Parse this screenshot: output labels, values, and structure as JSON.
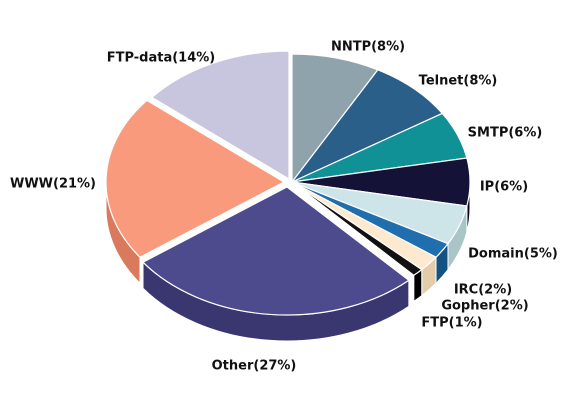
{
  "chart_data": {
    "type": "pie",
    "style": "3d-exploded",
    "slices": [
      {
        "label": "NNTP(8%)",
        "name": "NNTP",
        "value": 8,
        "color": "#8fa3ac",
        "side": "#6f838c"
      },
      {
        "label": "Telnet(8%)",
        "name": "Telnet",
        "value": 8,
        "color": "#2a5f8a",
        "side": "#1d4566"
      },
      {
        "label": "SMTP(6%)",
        "name": "SMTP",
        "value": 6,
        "color": "#0f9196",
        "side": "#0a6a6e"
      },
      {
        "label": "IP(6%)",
        "name": "IP",
        "value": 6,
        "color": "#141237",
        "side": "#0a0922"
      },
      {
        "label": "Domain(5%)",
        "name": "Domain",
        "value": 5,
        "color": "#cde5e8",
        "side": "#a9c5c8"
      },
      {
        "label": "IRC(2%)",
        "name": "IRC",
        "value": 2,
        "color": "#1f6fae",
        "side": "#155282"
      },
      {
        "label": "Gopher(2%)",
        "name": "Gopher",
        "value": 2,
        "color": "#fde9cf",
        "side": "#e3cca9"
      },
      {
        "label": "FTP(1%)",
        "name": "FTP",
        "value": 1,
        "color": "#111111",
        "side": "#000000"
      },
      {
        "label": "Other(27%)",
        "name": "Other",
        "value": 27,
        "color": "#4e4a8e",
        "side": "#3a3770"
      },
      {
        "label": "WWW(21%)",
        "name": "WWW",
        "value": 21,
        "color": "#fa9a7c",
        "side": "#d97a5c"
      },
      {
        "label": "FTP-data(14%)",
        "name": "FTP-data",
        "value": 14,
        "color": "#c8c6de",
        "side": "#a8a6be"
      }
    ]
  }
}
